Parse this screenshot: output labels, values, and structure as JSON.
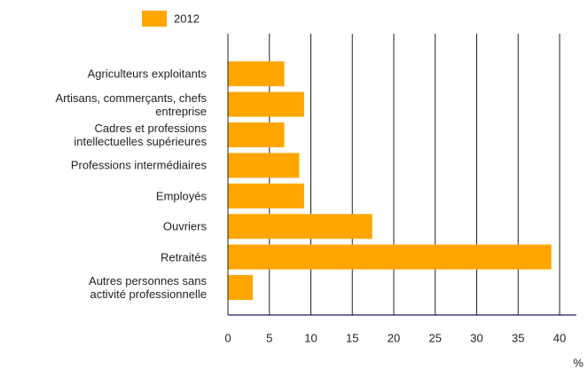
{
  "chart_data": {
    "type": "bar",
    "orientation": "horizontal",
    "categories": [
      "Agriculteurs exploitants",
      "Artisans, commerçants, chefs\nentreprise",
      "Cadres et professions\nintellectuelles supérieures",
      "Professions intermédiaires",
      "Employés",
      "Ouvriers",
      "Retraités",
      "Autres personnes sans\nactivité professionnelle"
    ],
    "series": [
      {
        "name": "2012",
        "color": "#ffa500",
        "values": [
          6.8,
          9.2,
          6.8,
          8.6,
          9.2,
          17.4,
          39.0,
          3.0
        ]
      }
    ],
    "xlim": [
      0,
      42
    ],
    "xticks": [
      0,
      5,
      10,
      15,
      20,
      25,
      30,
      35,
      40
    ],
    "xlabel": "%",
    "grid": true,
    "legend": "top-left"
  }
}
